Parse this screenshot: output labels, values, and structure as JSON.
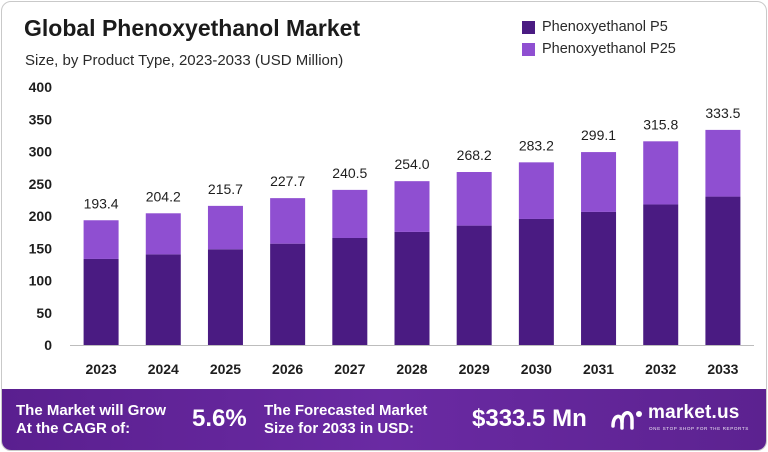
{
  "header": {
    "title": "Global Phenoxyethanol Market",
    "subtitle": "Size, by Product Type, 2023-2033 (USD Million)"
  },
  "legend": [
    {
      "label": "Phenoxyethanol P5",
      "color": "#4a1b82"
    },
    {
      "label": "Phenoxyethanol P25",
      "color": "#8f4fd1"
    }
  ],
  "chart_data": {
    "type": "bar",
    "stacked": true,
    "categories": [
      "2023",
      "2024",
      "2025",
      "2026",
      "2027",
      "2028",
      "2029",
      "2030",
      "2031",
      "2032",
      "2033"
    ],
    "series": [
      {
        "name": "Phenoxyethanol P5",
        "color": "#4a1b82",
        "values": [
          133.4,
          140.5,
          148.4,
          157.1,
          165.9,
          175.3,
          185.1,
          195.4,
          206.3,
          217.9,
          230.1
        ]
      },
      {
        "name": "Phenoxyethanol P25",
        "color": "#8f4fd1",
        "values": [
          60.0,
          63.7,
          67.3,
          70.6,
          74.6,
          78.7,
          83.1,
          87.8,
          92.8,
          97.9,
          103.4
        ]
      }
    ],
    "totals": [
      "193.4",
      "204.2",
      "215.7",
      "227.7",
      "240.5",
      "254.0",
      "268.2",
      "283.2",
      "299.1",
      "315.8",
      "333.5"
    ],
    "yticks": [
      "0",
      "50",
      "100",
      "150",
      "200",
      "250",
      "300",
      "350",
      "400"
    ],
    "ylim": [
      0,
      400
    ],
    "grid": false,
    "legend_position": "top-right"
  },
  "banner": {
    "cagr_label_line1": "The Market will Grow",
    "cagr_label_line2": "At the CAGR of:",
    "cagr_value": "5.6%",
    "forecast_label_line1": "The Forecasted Market",
    "forecast_label_line2": "Size for 2033 in USD:",
    "forecast_value": "$333.5 Mn",
    "brand_name": "market.us",
    "brand_tagline": "ONE STOP SHOP FOR THE REPORTS"
  }
}
